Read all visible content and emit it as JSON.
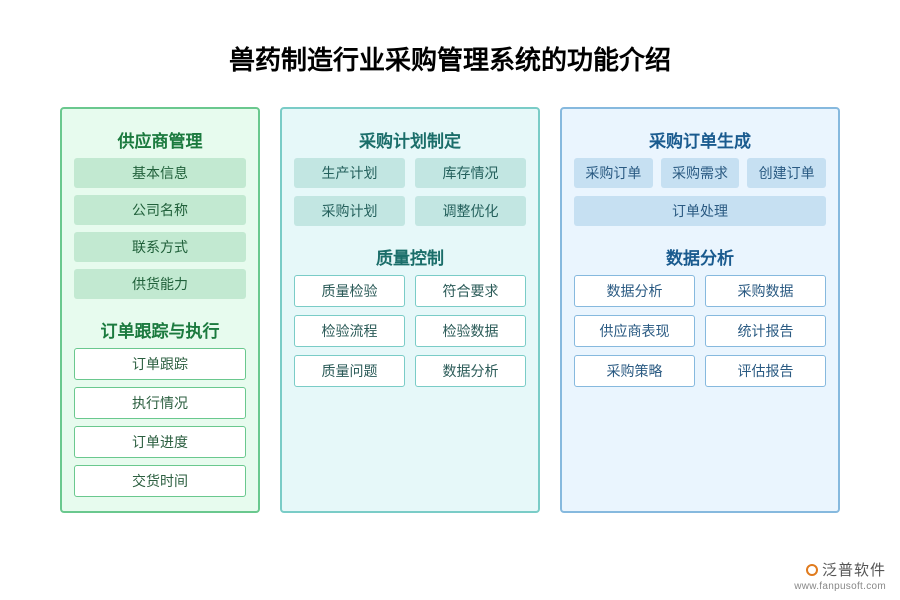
{
  "title": "兽药制造行业采购管理系统的功能介绍",
  "columns": {
    "green": {
      "border_color": "#6ac88e",
      "bg_color": "#e7fbee",
      "sections": [
        {
          "title": "供应商管理",
          "item_style": "green",
          "items": [
            "基本信息",
            "公司名称",
            "联系方式",
            "供货能力"
          ]
        },
        {
          "title": "订单跟踪与执行",
          "item_style": "white-green",
          "items": [
            "订单跟踪",
            "执行情况",
            "订单进度",
            "交货时间"
          ]
        }
      ]
    },
    "teal": {
      "border_color": "#7accc7",
      "bg_color": "#e6f8f9",
      "sections": [
        {
          "title": "采购计划制定",
          "item_style": "teal",
          "layout": "2col",
          "items": [
            "生产计划",
            "库存情况",
            "采购计划",
            "调整优化"
          ]
        },
        {
          "title": "质量控制",
          "item_style": "white-teal",
          "layout": "2col",
          "items": [
            "质量检验",
            "符合要求",
            "检验流程",
            "检验数据",
            "质量问题",
            "数据分析"
          ]
        }
      ]
    },
    "blue": {
      "border_color": "#86b9de",
      "bg_color": "#eaf5fe",
      "sections": [
        {
          "title": "采购订单生成",
          "item_style": "blue",
          "layout": "3col",
          "items_row1": [
            "采购订单",
            "采购需求",
            "创建订单"
          ],
          "item_wide": "订单处理"
        },
        {
          "title": "数据分析",
          "item_style": "white-blue",
          "layout": "2col",
          "items": [
            "数据分析",
            "采购数据",
            "供应商表现",
            "统计报告",
            "采购策略",
            "评估报告"
          ]
        }
      ]
    }
  },
  "logo": {
    "text": "泛普软件",
    "url": "www.fanpusoft.com",
    "accent_color": "#e07b1e"
  }
}
